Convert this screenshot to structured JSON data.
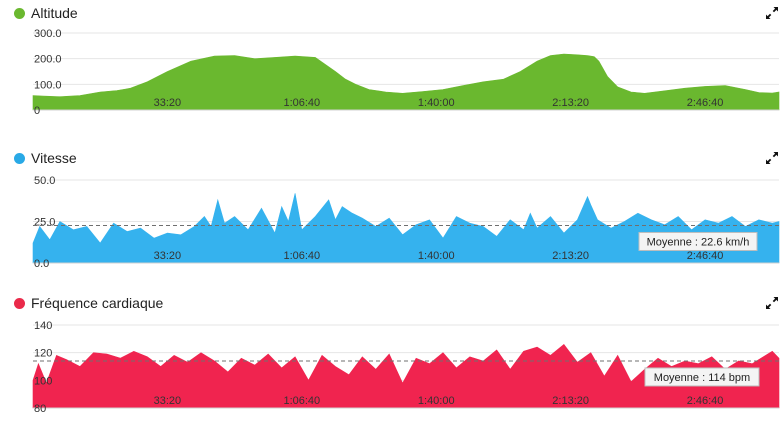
{
  "panels": [
    {
      "id": "altitude",
      "title": "Altitude",
      "dot_color": "#6ab82f",
      "expand_icon": "expand-icon",
      "chart_data": {
        "type": "area",
        "title": "Altitude",
        "color": "#6ab82f",
        "y_tick_labels": [
          "0",
          "100.0",
          "200.0",
          "300.0"
        ],
        "ylim": [
          0,
          300
        ],
        "x_tick_labels": [
          "33:20",
          "1:06:40",
          "1:40:00",
          "2:13:20",
          "2:46:40"
        ],
        "x_ticks_seconds": [
          2000,
          4000,
          6000,
          8000,
          10000
        ],
        "xlim_seconds": [
          0,
          11100
        ],
        "grid": true,
        "x": [
          0,
          150,
          400,
          700,
          1000,
          1250,
          1450,
          1700,
          2000,
          2350,
          2700,
          3000,
          3300,
          3600,
          3900,
          4200,
          4500,
          4650,
          4800,
          5000,
          5250,
          5500,
          5800,
          6100,
          6400,
          6700,
          7000,
          7250,
          7500,
          7700,
          7900,
          8100,
          8250,
          8350,
          8420,
          8550,
          8700,
          8900,
          9100,
          9400,
          9700,
          10000,
          10300,
          10600,
          10800,
          11000,
          11100
        ],
        "values": [
          56,
          54,
          52,
          56,
          70,
          76,
          85,
          110,
          150,
          190,
          210,
          212,
          200,
          205,
          210,
          205,
          150,
          120,
          100,
          80,
          70,
          65,
          72,
          80,
          95,
          110,
          120,
          150,
          190,
          212,
          218,
          215,
          212,
          208,
          190,
          130,
          90,
          70,
          65,
          75,
          85,
          92,
          95,
          80,
          68,
          66,
          70
        ]
      }
    },
    {
      "id": "vitesse",
      "title": "Vitesse",
      "dot_color": "#29a9e6",
      "expand_icon": "expand-icon",
      "chart_data": {
        "type": "area",
        "title": "Vitesse",
        "color": "#35b2ee",
        "y_tick_labels": [
          "0.0",
          "25.0",
          "50.0"
        ],
        "ylim": [
          0,
          50
        ],
        "x_tick_labels": [
          "33:20",
          "1:06:40",
          "1:40:00",
          "2:13:20",
          "2:46:40"
        ],
        "x_ticks_seconds": [
          2000,
          4000,
          6000,
          8000,
          10000
        ],
        "xlim_seconds": [
          0,
          11100
        ],
        "grid": true,
        "average_value": 22.6,
        "average_label": "Moyenne : 22.6 km/h",
        "x": [
          0,
          100,
          250,
          400,
          600,
          800,
          1000,
          1200,
          1400,
          1600,
          1800,
          2000,
          2200,
          2400,
          2550,
          2650,
          2750,
          2850,
          3000,
          3200,
          3400,
          3600,
          3700,
          3800,
          3900,
          4000,
          4200,
          4400,
          4500,
          4600,
          4750,
          4900,
          5100,
          5300,
          5500,
          5700,
          5900,
          6100,
          6300,
          6500,
          6700,
          6900,
          7100,
          7300,
          7400,
          7500,
          7700,
          7900,
          8100,
          8250,
          8300,
          8400,
          8600,
          8800,
          9000,
          9200,
          9400,
          9600,
          9800,
          10000,
          10200,
          10400,
          10600,
          10800,
          11000,
          11100
        ],
        "values": [
          12,
          22,
          14,
          25,
          20,
          22,
          12,
          24,
          19,
          21,
          15,
          18,
          17,
          22,
          28,
          22,
          38,
          24,
          28,
          20,
          33,
          18,
          34,
          25,
          42,
          20,
          28,
          38,
          26,
          34,
          30,
          27,
          22,
          27,
          17,
          23,
          26,
          15,
          28,
          24,
          22,
          16,
          26,
          20,
          30,
          21,
          28,
          18,
          26,
          40,
          35,
          26,
          21,
          25,
          30,
          26,
          23,
          28,
          20,
          26,
          24,
          28,
          22,
          26,
          24,
          25
        ]
      }
    },
    {
      "id": "frequence",
      "title": "Fréquence cardiaque",
      "dot_color": "#ea2a4a",
      "expand_icon": "expand-icon",
      "chart_data": {
        "type": "area",
        "title": "Fréquence cardiaque",
        "color": "#f0244f",
        "y_tick_labels": [
          "80",
          "100",
          "120",
          "140"
        ],
        "ylim": [
          80,
          140
        ],
        "x_tick_labels": [
          "33:20",
          "1:06:40",
          "1:40:00",
          "2:13:20",
          "2:46:40"
        ],
        "x_ticks_seconds": [
          2000,
          4000,
          6000,
          8000,
          10000
        ],
        "xlim_seconds": [
          0,
          11100
        ],
        "grid": true,
        "average_value": 114,
        "average_label": "Moyenne : 114 bpm",
        "x": [
          0,
          80,
          200,
          350,
          500,
          700,
          900,
          1100,
          1300,
          1500,
          1700,
          1900,
          2100,
          2300,
          2500,
          2700,
          2900,
          3100,
          3300,
          3500,
          3700,
          3900,
          4100,
          4300,
          4500,
          4700,
          4900,
          5100,
          5300,
          5500,
          5700,
          5900,
          6100,
          6300,
          6500,
          6700,
          6900,
          7100,
          7300,
          7500,
          7700,
          7900,
          8100,
          8300,
          8500,
          8700,
          8900,
          9100,
          9300,
          9500,
          9700,
          9900,
          10100,
          10300,
          10500,
          10700,
          10900,
          11000,
          11100
        ],
        "values": [
          100,
          112,
          98,
          118,
          115,
          110,
          120,
          119,
          116,
          121,
          117,
          110,
          118,
          113,
          120,
          114,
          106,
          116,
          111,
          119,
          109,
          117,
          100,
          118,
          110,
          104,
          117,
          108,
          119,
          98,
          116,
          112,
          120,
          109,
          117,
          114,
          122,
          108,
          121,
          124,
          118,
          126,
          113,
          120,
          103,
          118,
          99,
          108,
          116,
          110,
          114,
          112,
          117,
          108,
          114,
          112,
          118,
          121,
          116
        ]
      }
    }
  ]
}
